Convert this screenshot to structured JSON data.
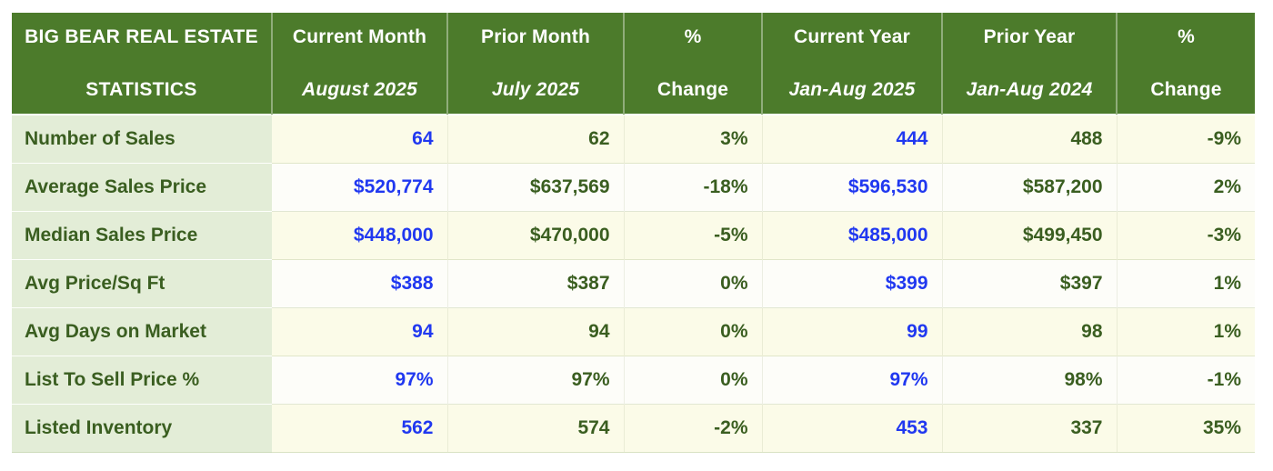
{
  "chart_data": {
    "type": "table",
    "title": "BIG BEAR REAL ESTATE STATISTICS",
    "title_lines": [
      "BIG BEAR REAL ESTATE",
      "STATISTICS"
    ],
    "column_headers": [
      {
        "line1": "Current Month",
        "line2": "August 2025"
      },
      {
        "line1": "Prior Month",
        "line2": "July 2025"
      },
      {
        "line1": "%",
        "line2": "Change"
      },
      {
        "line1": "Current Year",
        "line2": "Jan-Aug 2025"
      },
      {
        "line1": "Prior Year",
        "line2": "Jan-Aug 2024"
      },
      {
        "line1": "%",
        "line2": "Change"
      }
    ],
    "rows": [
      {
        "label": "Number of Sales",
        "values": [
          "64",
          "62",
          "3%",
          "444",
          "488",
          "-9%"
        ]
      },
      {
        "label": "Average Sales Price",
        "values": [
          "$520,774",
          "$637,569",
          "-18%",
          "$596,530",
          "$587,200",
          "2%"
        ]
      },
      {
        "label": "Median Sales Price",
        "values": [
          "$448,000",
          "$470,000",
          "-5%",
          "$485,000",
          "$499,450",
          "-3%"
        ]
      },
      {
        "label": "Avg Price/Sq Ft",
        "values": [
          "$388",
          "$387",
          "0%",
          "$399",
          "$397",
          "1%"
        ]
      },
      {
        "label": "Avg Days on Market",
        "values": [
          "94",
          "94",
          "0%",
          "99",
          "98",
          "1%"
        ]
      },
      {
        "label": "List To Sell Price %",
        "values": [
          "97%",
          "97%",
          "0%",
          "97%",
          "98%",
          "-1%"
        ]
      },
      {
        "label": "Listed Inventory",
        "values": [
          "562",
          "574",
          "-2%",
          "453",
          "337",
          "35%"
        ]
      }
    ],
    "highlighted_value_columns": [
      0,
      3
    ],
    "layout": {
      "legend": "none",
      "grid": "table-borders"
    }
  },
  "colors": {
    "header_green": "#4c7b2b",
    "label_bg": "#e3edd7",
    "row_cream": "#fbfbe8",
    "row_white": "#fdfdf9",
    "text_green": "#3a5e20",
    "text_blue": "#2038f0",
    "page_bg": "#ffffff"
  }
}
